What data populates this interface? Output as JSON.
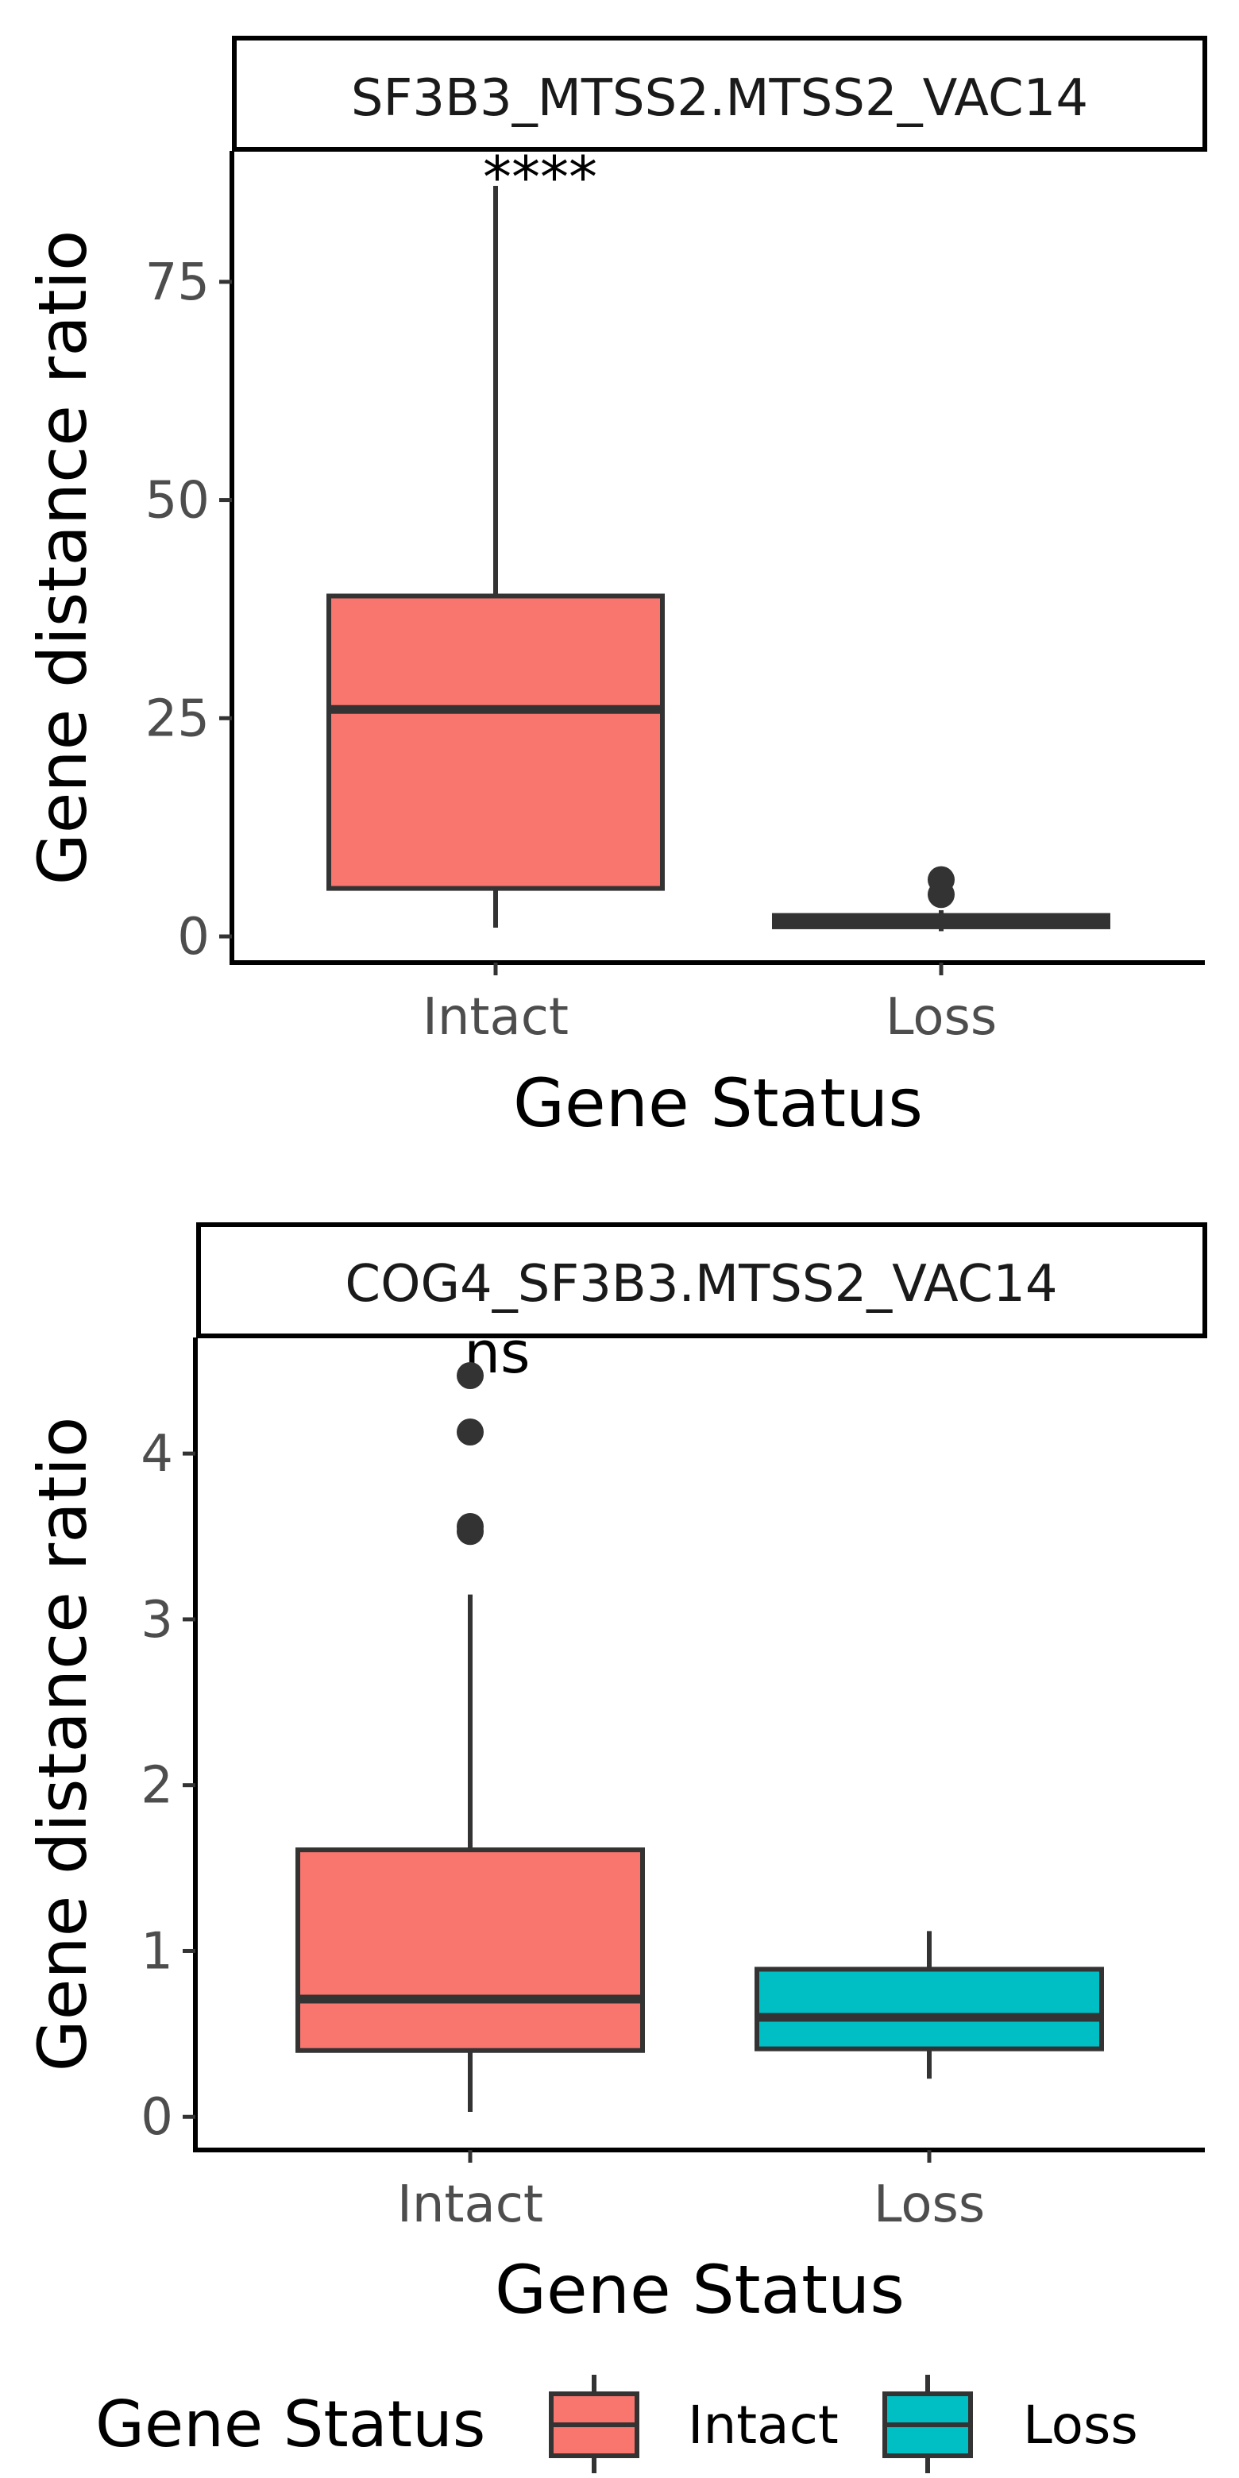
{
  "chart_data": [
    {
      "type": "box",
      "title": "SF3B3_MTSS2.MTSS2_VAC14",
      "xlabel": "Gene Status",
      "ylabel": "Gene distance ratio",
      "categories": [
        "Intact",
        "Loss"
      ],
      "ylim": [
        -3,
        90
      ],
      "yticks": [
        0,
        25,
        50,
        75
      ],
      "significance": "****",
      "boxes": [
        {
          "category": "Intact",
          "whisker_low": 1,
          "q1": 5.5,
          "median": 26,
          "q3": 39,
          "whisker_high": 86,
          "outliers": []
        },
        {
          "category": "Loss",
          "whisker_low": 0.6,
          "q1": 1.1,
          "median": 1.7,
          "q3": 2.4,
          "whisker_high": 3.0,
          "outliers": [
            4.8,
            6.5
          ]
        }
      ]
    },
    {
      "type": "box",
      "title": "COG4_SF3B3.MTSS2_VAC14",
      "xlabel": "Gene Status",
      "ylabel": "Gene distance ratio",
      "categories": [
        "Intact",
        "Loss"
      ],
      "ylim": [
        -0.2,
        4.7
      ],
      "yticks": [
        0,
        1,
        2,
        3,
        4
      ],
      "significance": "ns",
      "boxes": [
        {
          "category": "Intact",
          "whisker_low": 0.03,
          "q1": 0.4,
          "median": 0.71,
          "q3": 1.61,
          "whisker_high": 3.15,
          "outliers": [
            3.53,
            3.56,
            4.13,
            4.47
          ]
        },
        {
          "category": "Loss",
          "whisker_low": 0.23,
          "q1": 0.41,
          "median": 0.6,
          "q3": 0.89,
          "whisker_high": 1.12,
          "outliers": []
        }
      ]
    }
  ],
  "legend": {
    "title": "Gene Status",
    "items": [
      {
        "label": "Intact",
        "color": "#F8766D"
      },
      {
        "label": "Loss",
        "color": "#00BFC4"
      }
    ]
  },
  "colors": {
    "Intact": "#F8766D",
    "Loss": "#00BFC4",
    "line": "#333333"
  }
}
